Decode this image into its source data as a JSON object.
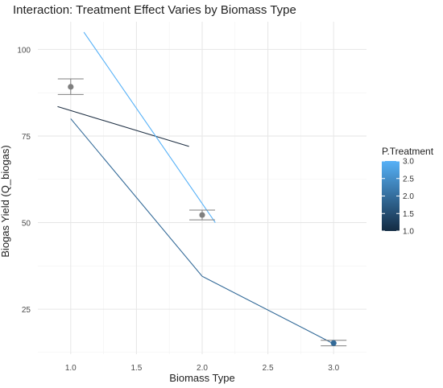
{
  "chart_data": {
    "type": "line",
    "title": "Interaction: Treatment Effect Varies by Biomass Type",
    "xlabel": "Biomass Type",
    "ylabel": "Biogas Yield (Q_biogas)",
    "xlim": [
      0.75,
      3.25
    ],
    "ylim": [
      12,
      108
    ],
    "x_ticks": [
      1.0,
      1.5,
      2.0,
      2.5,
      3.0
    ],
    "x_tick_labels": [
      "1.0",
      "1.5",
      "2.0",
      "2.5",
      "3.0"
    ],
    "y_ticks": [
      25,
      50,
      75,
      100
    ],
    "y_tick_labels": [
      "25",
      "50",
      "75",
      "100"
    ],
    "grid": true,
    "legend": {
      "title": "P.Treatment",
      "type": "colorbar",
      "placement": "right",
      "range": [
        1.0,
        3.0
      ],
      "ticks": [
        1.0,
        1.5,
        2.0,
        2.5,
        3.0
      ],
      "tick_labels": [
        "1.0",
        "1.5",
        "2.0",
        "2.5",
        "3.0"
      ],
      "low_color": "#132B43",
      "high_color": "#56B1F7"
    },
    "series": [
      {
        "treatment": 1,
        "color": "#1f3044",
        "x": [
          0.9,
          1.9
        ],
        "y": [
          83.5,
          72
        ]
      },
      {
        "treatment": 2,
        "color": "#336a98",
        "x": [
          1.0,
          2.0,
          3.0
        ],
        "y": [
          80,
          34.5,
          15
        ]
      },
      {
        "treatment": 3,
        "color": "#56B1F7",
        "x": [
          1.1,
          2.1
        ],
        "y": [
          105,
          50
        ]
      }
    ],
    "points": [
      {
        "x": 1.0,
        "y": 89.2,
        "ymin": 87,
        "ymax": 91.5,
        "color": "#7f7f7f"
      },
      {
        "x": 2.0,
        "y": 52.2,
        "ymin": 50.8,
        "ymax": 53.6,
        "color": "#7f7f7f"
      },
      {
        "x": 3.0,
        "y": 15.2,
        "ymin": 14.4,
        "ymax": 16.0,
        "color": "#336a98"
      }
    ]
  }
}
